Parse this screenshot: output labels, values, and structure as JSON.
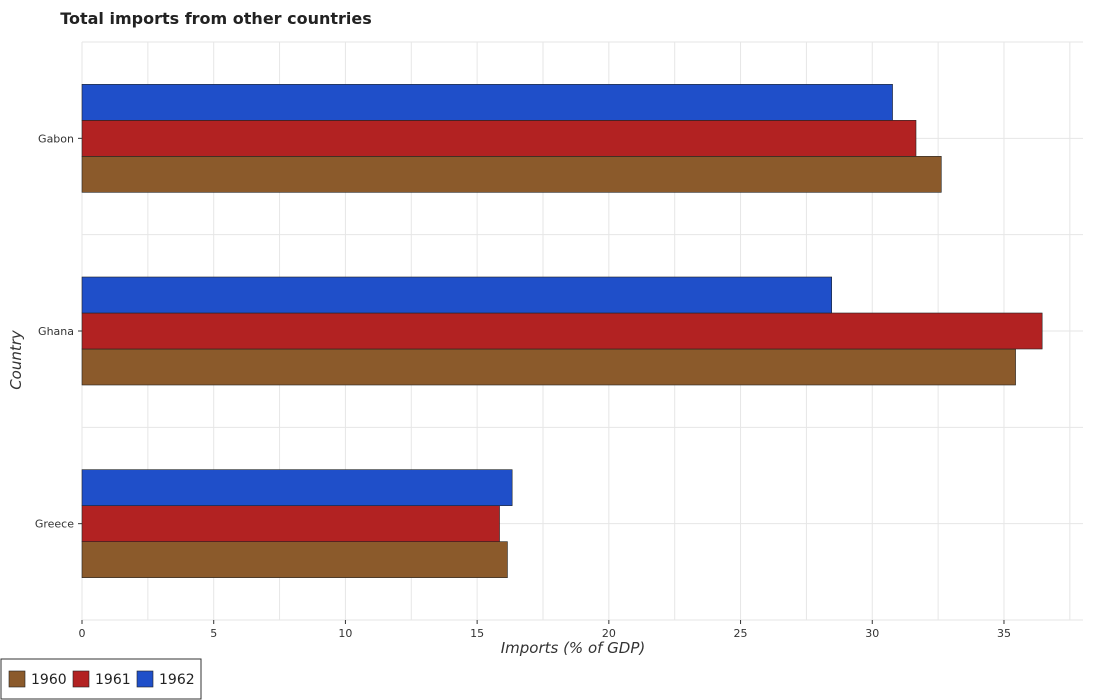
{
  "chart_data": {
    "type": "bar",
    "orientation": "horizontal",
    "title": "Total imports from other countries",
    "xlabel": "Imports (% of GDP)",
    "ylabel": "Country",
    "categories": [
      "Gabon",
      "Ghana",
      "Greece"
    ],
    "series": [
      {
        "name": "1960",
        "color": "#8B5A2B",
        "values": [
          32.62,
          35.44,
          16.15
        ]
      },
      {
        "name": "1961",
        "color": "#B22222",
        "values": [
          31.66,
          36.45,
          15.85
        ]
      },
      {
        "name": "1962",
        "color": "#1f4fc9",
        "values": [
          30.77,
          28.46,
          16.33
        ]
      }
    ],
    "xlim": [
      0,
      38
    ],
    "xticks": [
      0,
      5,
      10,
      15,
      20,
      25,
      30,
      35
    ],
    "grid": true,
    "legend_position": "bottom-left"
  }
}
